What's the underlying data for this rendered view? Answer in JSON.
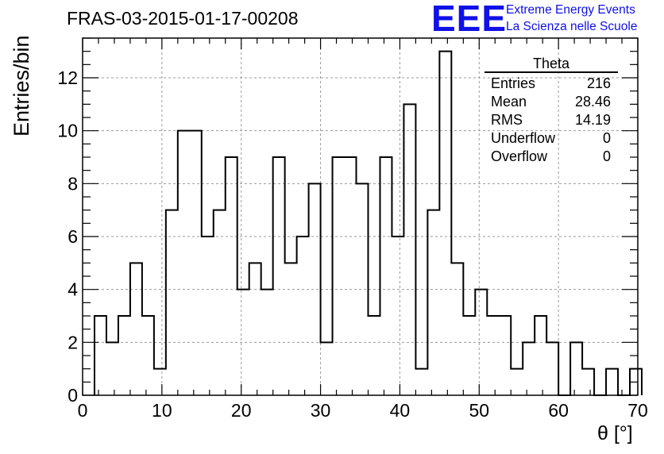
{
  "title": "FRAS-03-2015-01-17-00208",
  "logo": {
    "mark": "EEE",
    "line1": "Extreme Energy Events",
    "line2": "La Scienza nelle Scuole",
    "color": "#1010e8"
  },
  "stats": {
    "title": "Theta",
    "rows": [
      {
        "label": "Entries",
        "value": "216"
      },
      {
        "label": "Mean",
        "value": "28.46"
      },
      {
        "label": "RMS",
        "value": "14.19"
      },
      {
        "label": "Underflow",
        "value": "0"
      },
      {
        "label": "Overflow",
        "value": "0"
      }
    ]
  },
  "chart_data": {
    "type": "bar",
    "style": "step-histogram",
    "title": "FRAS-03-2015-01-17-00208",
    "xlabel": "θ [°]",
    "ylabel": "Entries/bin",
    "xlim": [
      0,
      70
    ],
    "ylim": [
      0,
      13.5
    ],
    "x_ticks": [
      0,
      10,
      20,
      30,
      40,
      50,
      60,
      70
    ],
    "y_ticks": [
      0,
      2,
      4,
      6,
      8,
      10,
      12
    ],
    "grid": true,
    "bin_start": 1.5,
    "bin_width": 1.5,
    "values": [
      3,
      2,
      3,
      5,
      3,
      1,
      7,
      10,
      10,
      6,
      7,
      9,
      4,
      5,
      4,
      9,
      5,
      6,
      8,
      2,
      9,
      9,
      8,
      3,
      9,
      6,
      11,
      1,
      7,
      13,
      5,
      3,
      4,
      3,
      3,
      1,
      2,
      3,
      2,
      0,
      2,
      1,
      0,
      1,
      0,
      1
    ]
  }
}
